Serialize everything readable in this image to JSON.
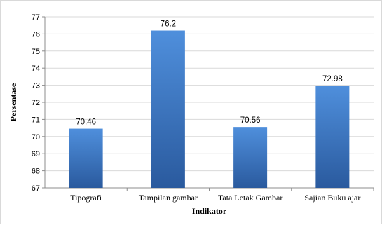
{
  "chart_data": {
    "type": "bar",
    "categories": [
      "Tipografi",
      "Tampilan gambar",
      "Tata Letak Gambar",
      "Sajian Buku ajar"
    ],
    "values": [
      70.46,
      76.2,
      70.56,
      72.98
    ],
    "data_labels": [
      "70.46",
      "76.2",
      "70.56",
      "72.98"
    ],
    "title": "",
    "xlabel": "Indikator",
    "ylabel": "Persentase",
    "ylim": [
      67,
      77
    ],
    "yticks": [
      67,
      68,
      69,
      70,
      71,
      72,
      73,
      74,
      75,
      76,
      77
    ],
    "grid": true,
    "legend": "none",
    "bar_color": "#3a74c4",
    "bar_color_light": "#4f8fdc",
    "bar_color_dark": "#2a5a9e"
  }
}
